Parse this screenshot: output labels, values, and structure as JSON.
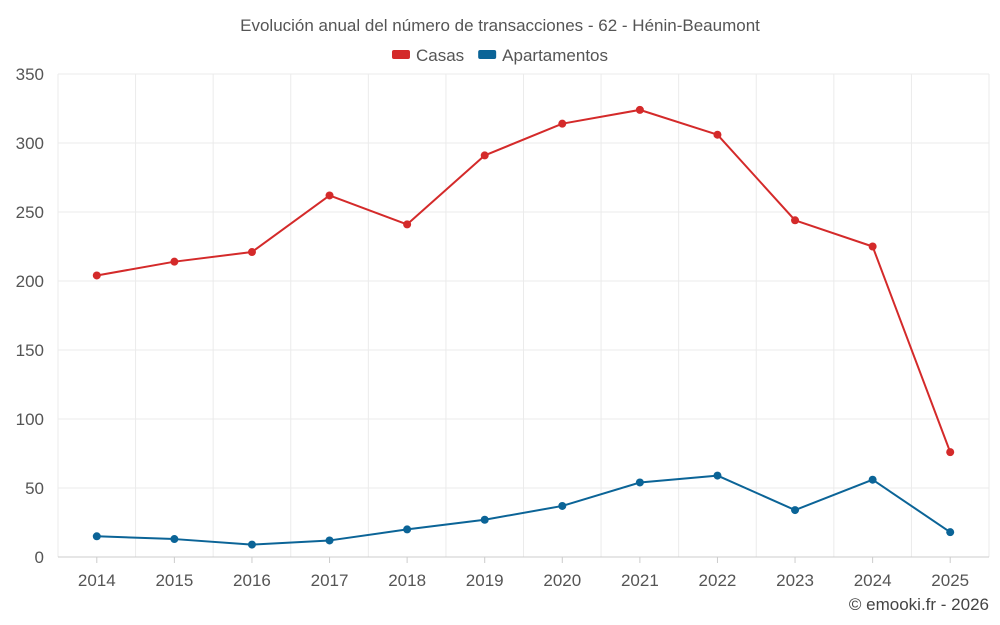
{
  "chart_data": {
    "type": "line",
    "title": "Evolución anual del número de transacciones - 62 - Hénin-Beaumont",
    "categories": [
      "2014",
      "2015",
      "2016",
      "2017",
      "2018",
      "2019",
      "2020",
      "2021",
      "2022",
      "2023",
      "2024",
      "2025"
    ],
    "series": [
      {
        "name": "Casas",
        "color": "#d42a2a",
        "values": [
          204,
          214,
          221,
          262,
          241,
          291,
          314,
          324,
          306,
          244,
          225,
          76
        ]
      },
      {
        "name": "Apartamentos",
        "color": "#0b6497",
        "values": [
          15,
          13,
          9,
          12,
          20,
          27,
          37,
          54,
          59,
          34,
          56,
          18
        ]
      }
    ],
    "ylim": [
      0,
      350
    ],
    "yticks": [
      0,
      50,
      100,
      150,
      200,
      250,
      300,
      350
    ],
    "legend_position": "top-center",
    "grid": true
  },
  "credit": "© emooki.fr - 2026"
}
